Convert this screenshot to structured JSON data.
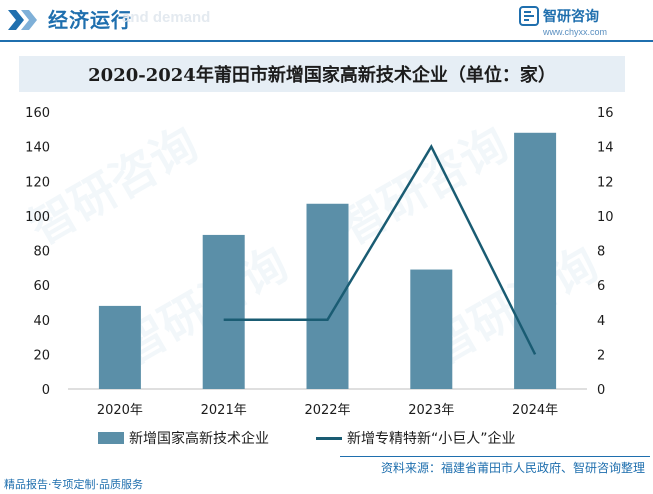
{
  "header": {
    "section_title": "经济运行",
    "watermark_text": "and demand",
    "brand_name": "智研咨询",
    "brand_url": "www.chyxx.com"
  },
  "chart_data": {
    "type": "bar",
    "title": "2020-2024年莆田市新增国家高新技术企业（单位：家）",
    "categories": [
      "2020年",
      "2021年",
      "2022年",
      "2023年",
      "2024年"
    ],
    "series": [
      {
        "name": "新增国家高新技术企业",
        "type": "bar",
        "axis": "left",
        "values": [
          48,
          89,
          107,
          69,
          148
        ],
        "color": "#5b8fa8"
      },
      {
        "name": "新增专精特新“小巨人”企业",
        "type": "line",
        "axis": "right",
        "values": [
          null,
          4,
          4,
          14,
          2
        ],
        "color": "#1a5c73"
      }
    ],
    "y_left": {
      "min": 0,
      "max": 160,
      "ticks": [
        "0",
        "20",
        "40",
        "60",
        "80",
        "100",
        "120",
        "140",
        "160"
      ]
    },
    "y_right": {
      "min": 0,
      "max": 16,
      "ticks": [
        "0",
        "2",
        "4",
        "6",
        "8",
        "10",
        "12",
        "14",
        "16"
      ]
    },
    "grid": false,
    "legend_position": "bottom"
  },
  "footer": {
    "source": "资料来源：福建省莆田市人民政府、智研咨询整理",
    "slogan": "精品报告·专项定制·品质服务"
  },
  "watermark": "智研咨询"
}
